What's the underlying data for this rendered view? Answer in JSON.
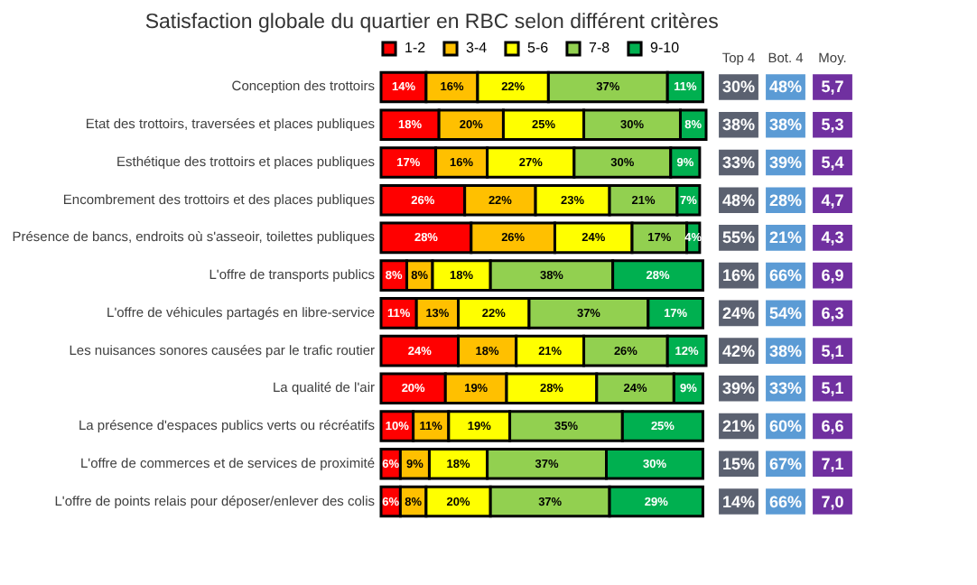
{
  "chart_data": [
    {
      "type": "bar",
      "title": "Satisfaction globale du quartier en RBC selon différent critères",
      "orientation": "horizontal",
      "stacked": true,
      "legend": "top",
      "tick_labels": "y",
      "xlim": [
        0,
        101
      ],
      "categories": [
        "Conception des trottoirs",
        "Etat des trottoirs, traversées et places publiques",
        "Esthétique des trottoirs et places publiques",
        "Encombrement des trottoirs et des places publiques",
        "Présence de bancs, endroits où  s'asseoir, toilettes publiques",
        "L'offre de transports publics",
        "L'offre de véhicules partagés en libre-service",
        "Les nuisances sonores causées par le trafic routier",
        "La qualité de l'air",
        "La présence d'espaces publics verts ou récréatifs",
        "L'offre de commerces et de services de proximité",
        "L'offre de points relais pour déposer/enlever des colis"
      ],
      "series": [
        {
          "name": "1-2",
          "color": "#ff0000",
          "values": [
            14,
            18,
            17,
            26,
            28,
            8,
            11,
            24,
            20,
            10,
            6,
            6
          ],
          "value_labels": [
            "14%",
            "18%",
            "17%",
            "26%",
            "28%",
            "8%",
            "11%",
            "24%",
            "20%",
            "10%",
            "6%",
            "6%"
          ]
        },
        {
          "name": "3-4",
          "color": "#ffc000",
          "values": [
            16,
            20,
            16,
            22,
            26,
            8,
            13,
            18,
            19,
            11,
            9,
            8
          ],
          "value_labels": [
            "16%",
            "20%",
            "16%",
            "22%",
            "26%",
            "8%",
            "13%",
            "18%",
            "19%",
            "11%",
            "9%",
            "8%"
          ]
        },
        {
          "name": "5-6",
          "color": "#ffff00",
          "values": [
            22,
            25,
            27,
            23,
            24,
            18,
            22,
            21,
            28,
            19,
            18,
            20
          ],
          "value_labels": [
            "22%",
            "25%",
            "27%",
            "23%",
            "24%",
            "18%",
            "22%",
            "21%",
            "28%",
            "19%",
            "18%",
            "20%"
          ]
        },
        {
          "name": "7-8",
          "color": "#92d050",
          "values": [
            37,
            30,
            30,
            21,
            17,
            38,
            37,
            26,
            24,
            35,
            37,
            37
          ],
          "value_labels": [
            "37%",
            "30%",
            "30%",
            "21%",
            "17%",
            "38%",
            "37%",
            "26%",
            "24%",
            "35%",
            "37%",
            "37%"
          ]
        },
        {
          "name": "9-10",
          "color": "#00b050",
          "values": [
            11,
            8,
            9,
            7,
            4,
            28,
            17,
            12,
            9,
            25,
            30,
            29
          ],
          "value_labels": [
            "11%",
            "8%",
            "9%",
            "7%",
            "4%",
            "28%",
            "17%",
            "12%",
            "9%",
            "25%",
            "30%",
            "29%"
          ]
        }
      ]
    },
    {
      "type": "other",
      "categories": [
        "Top 4",
        "Bot. 4",
        "Moy."
      ],
      "colors": [
        "#5b6170",
        "#5b9bd5",
        "#7030a0"
      ],
      "cell_labels": [
        [
          "30%",
          "48%",
          "5,7"
        ],
        [
          "38%",
          "38%",
          "5,3"
        ],
        [
          "33%",
          "39%",
          "5,4"
        ],
        [
          "48%",
          "28%",
          "4,7"
        ],
        [
          "55%",
          "21%",
          "4,3"
        ],
        [
          "16%",
          "66%",
          "6,9"
        ],
        [
          "24%",
          "54%",
          "6,3"
        ],
        [
          "42%",
          "38%",
          "5,1"
        ],
        [
          "39%",
          "33%",
          "5,1"
        ],
        [
          "21%",
          "60%",
          "6,6"
        ],
        [
          "15%",
          "67%",
          "7,1"
        ],
        [
          "14%",
          "66%",
          "7,0"
        ]
      ]
    }
  ]
}
